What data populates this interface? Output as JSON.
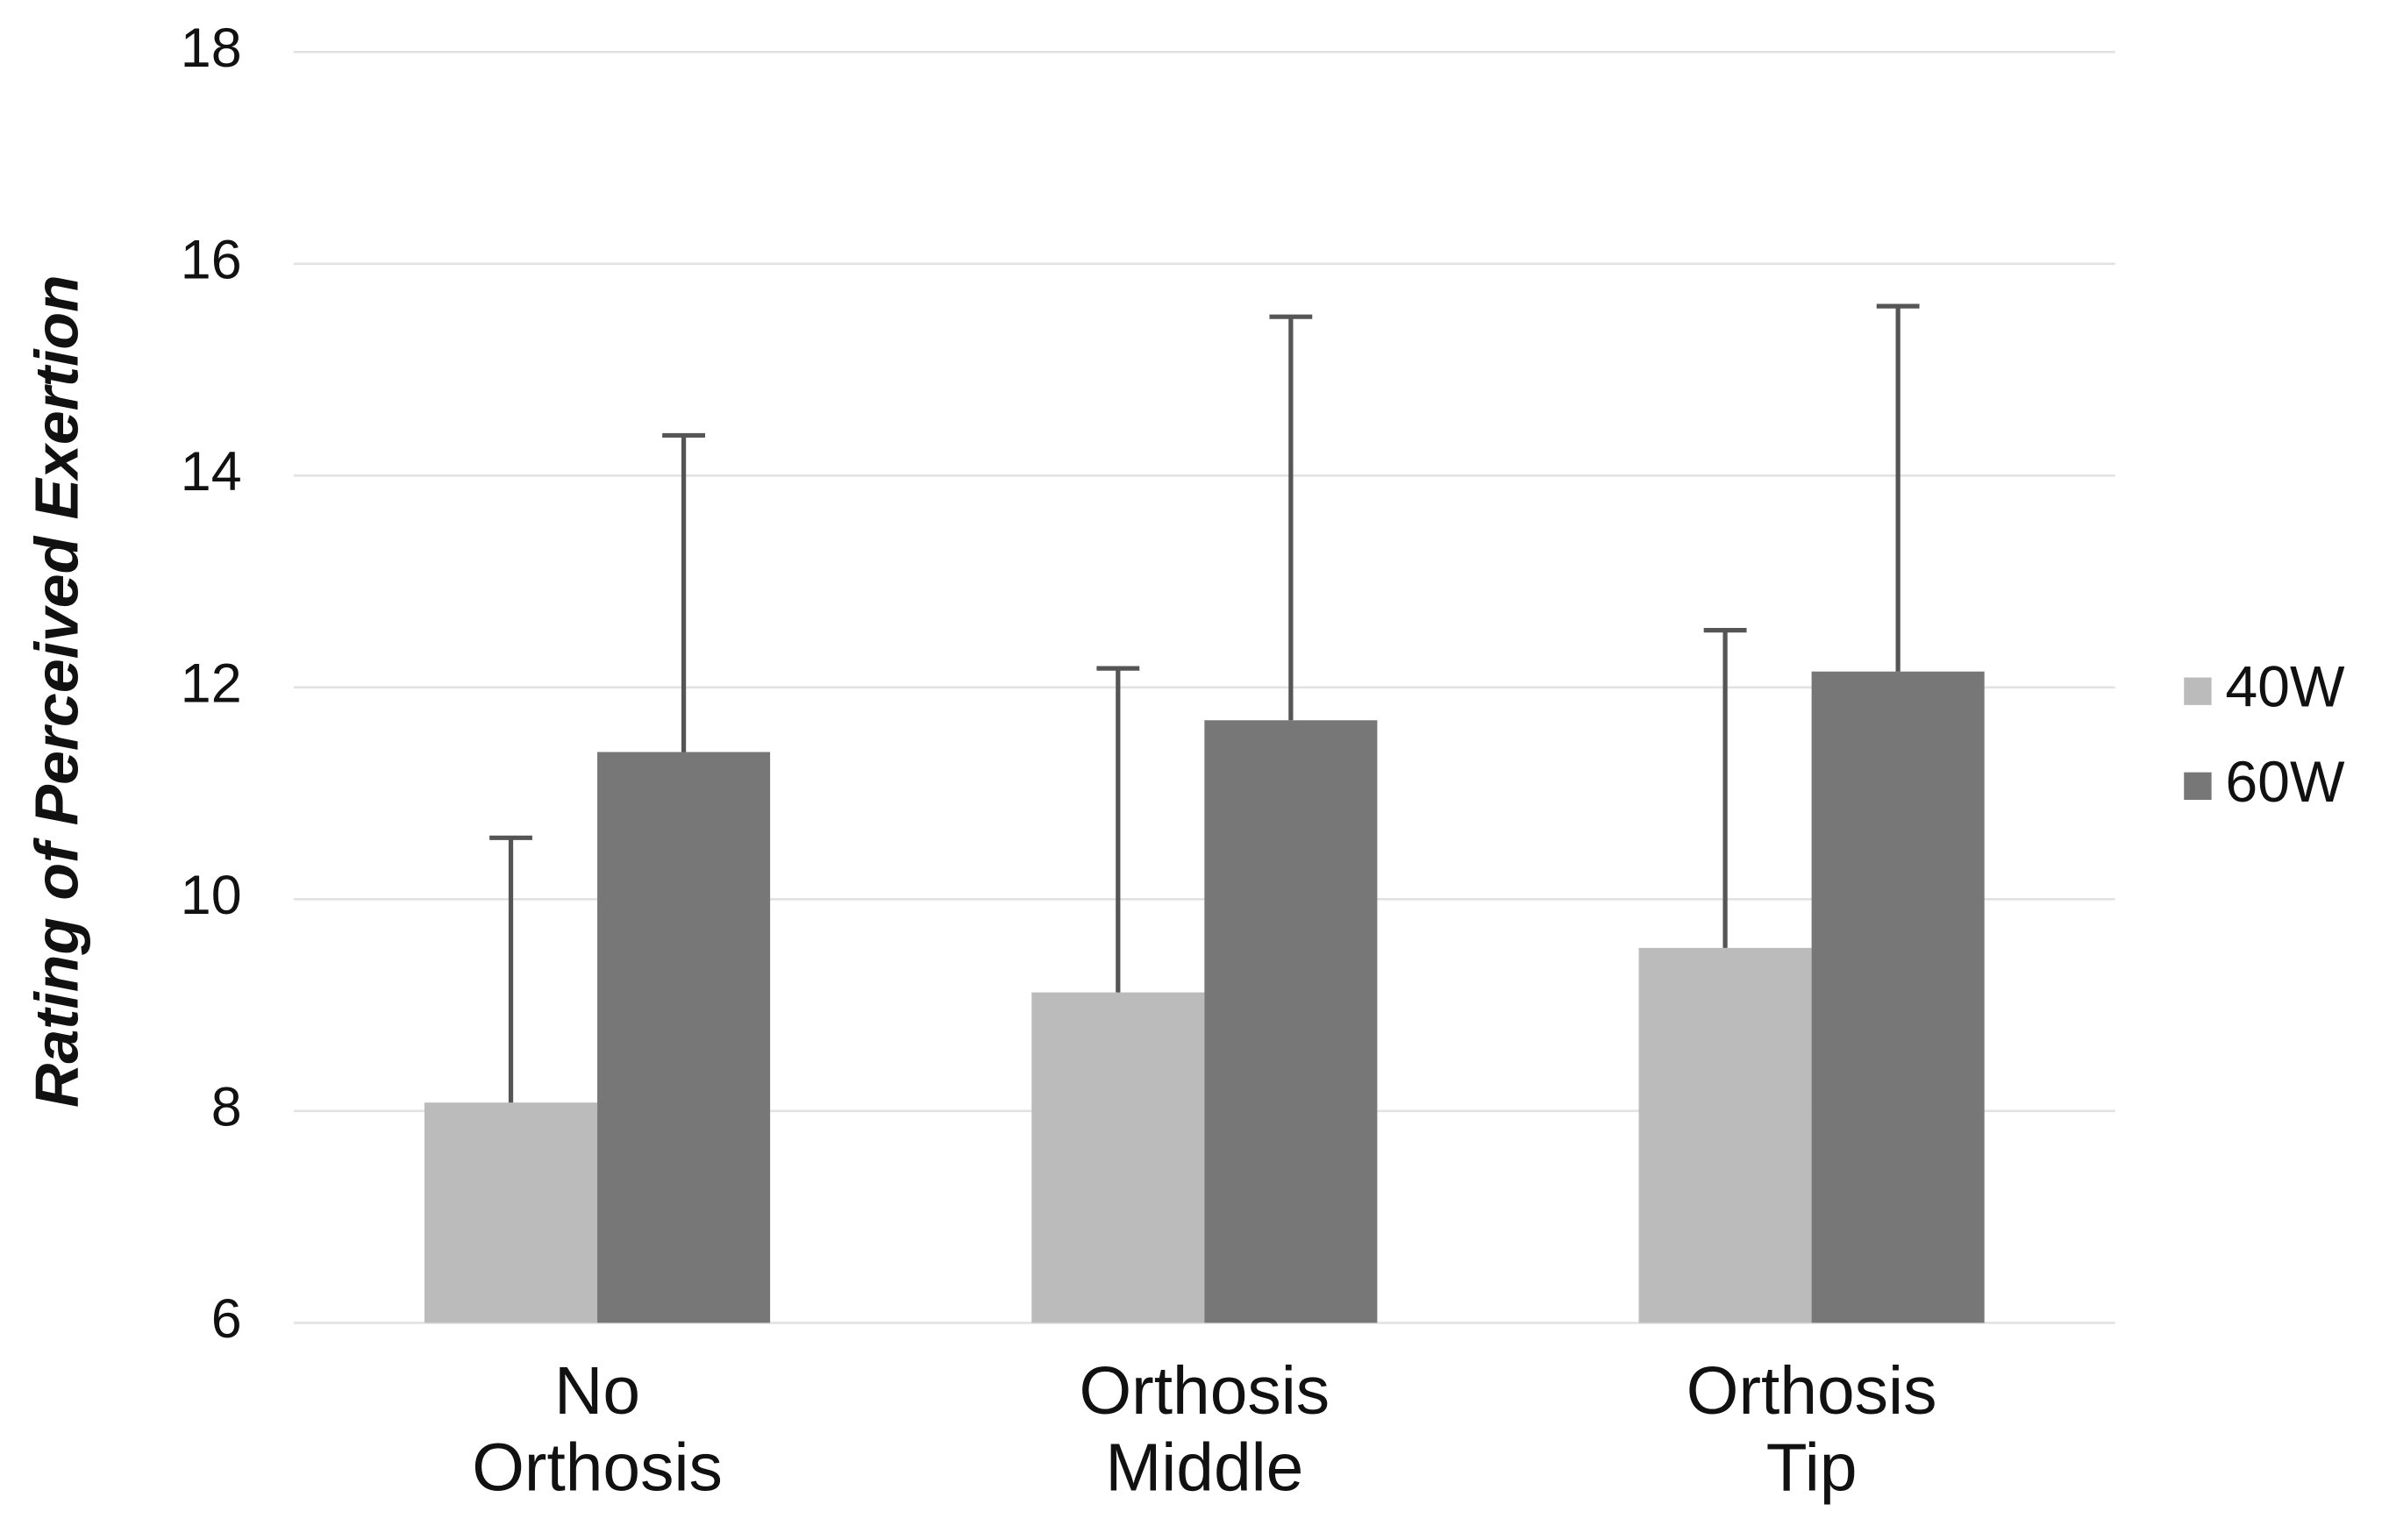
{
  "chart_data": {
    "type": "bar",
    "y_label": "Rating of Perceived Exertion",
    "categories": [
      "No Orthosis",
      "Orthosis Middle",
      "Orthosis Tip"
    ],
    "series": [
      {
        "name": "40W",
        "color": "#bbbbbb",
        "values": [
          8.08,
          9.12,
          9.54
        ],
        "errors": [
          2.5,
          3.06,
          3.0
        ]
      },
      {
        "name": "60W",
        "color": "#777777",
        "values": [
          11.39,
          11.69,
          12.15
        ],
        "errors": [
          2.99,
          3.81,
          3.45
        ]
      }
    ],
    "error_color": "#555555",
    "ylim": [
      6,
      18
    ],
    "yticks": [
      6,
      8,
      10,
      12,
      14,
      16,
      18
    ],
    "grid": true,
    "legend": "right"
  }
}
